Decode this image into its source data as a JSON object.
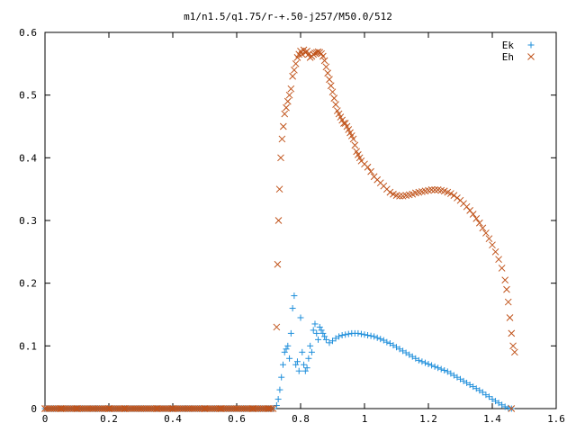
{
  "chart_data": {
    "type": "scatter",
    "title": "m1/n1.5/q1.75/r-+.50-j257/M50.0/512",
    "xlabel": "",
    "ylabel": "",
    "xlim": [
      0,
      1.6
    ],
    "ylim": [
      0,
      0.6
    ],
    "xticks": [
      "0",
      "0.2",
      "0.4",
      "0.6",
      "0.8",
      "1",
      "1.2",
      "1.4",
      "1.6"
    ],
    "yticks": [
      "0",
      "0.1",
      "0.2",
      "0.3",
      "0.4",
      "0.5",
      "0.6"
    ],
    "grid": false,
    "legend_position": "top-right",
    "series": [
      {
        "name": "Ek",
        "marker": "plus",
        "color": "#1f8fdb",
        "points": [
          [
            0.0,
            0
          ],
          [
            0.05,
            0
          ],
          [
            0.1,
            0
          ],
          [
            0.15,
            0
          ],
          [
            0.2,
            0
          ],
          [
            0.25,
            0
          ],
          [
            0.3,
            0
          ],
          [
            0.35,
            0
          ],
          [
            0.4,
            0
          ],
          [
            0.45,
            0
          ],
          [
            0.5,
            0
          ],
          [
            0.55,
            0
          ],
          [
            0.6,
            0
          ],
          [
            0.65,
            0
          ],
          [
            0.7,
            0
          ],
          [
            0.725,
            0.005
          ],
          [
            0.73,
            0.015
          ],
          [
            0.735,
            0.03
          ],
          [
            0.74,
            0.05
          ],
          [
            0.745,
            0.07
          ],
          [
            0.75,
            0.09
          ],
          [
            0.755,
            0.095
          ],
          [
            0.76,
            0.1
          ],
          [
            0.765,
            0.08
          ],
          [
            0.77,
            0.12
          ],
          [
            0.775,
            0.16
          ],
          [
            0.78,
            0.18
          ],
          [
            0.785,
            0.07
          ],
          [
            0.79,
            0.075
          ],
          [
            0.795,
            0.06
          ],
          [
            0.8,
            0.145
          ],
          [
            0.805,
            0.09
          ],
          [
            0.81,
            0.07
          ],
          [
            0.815,
            0.06
          ],
          [
            0.82,
            0.065
          ],
          [
            0.825,
            0.08
          ],
          [
            0.83,
            0.1
          ],
          [
            0.835,
            0.09
          ],
          [
            0.84,
            0.125
          ],
          [
            0.845,
            0.135
          ],
          [
            0.85,
            0.12
          ],
          [
            0.855,
            0.11
          ],
          [
            0.86,
            0.13
          ],
          [
            0.865,
            0.125
          ],
          [
            0.87,
            0.12
          ],
          [
            0.875,
            0.115
          ],
          [
            0.88,
            0.11
          ],
          [
            0.89,
            0.105
          ],
          [
            0.9,
            0.108
          ],
          [
            0.91,
            0.112
          ],
          [
            0.92,
            0.115
          ],
          [
            0.93,
            0.117
          ],
          [
            0.94,
            0.118
          ],
          [
            0.95,
            0.119
          ],
          [
            0.96,
            0.12
          ],
          [
            0.97,
            0.12
          ],
          [
            0.98,
            0.12
          ],
          [
            0.99,
            0.119
          ],
          [
            1.0,
            0.118
          ],
          [
            1.01,
            0.117
          ],
          [
            1.02,
            0.116
          ],
          [
            1.03,
            0.115
          ],
          [
            1.04,
            0.113
          ],
          [
            1.05,
            0.111
          ],
          [
            1.06,
            0.109
          ],
          [
            1.07,
            0.106
          ],
          [
            1.08,
            0.104
          ],
          [
            1.09,
            0.101
          ],
          [
            1.1,
            0.098
          ],
          [
            1.11,
            0.095
          ],
          [
            1.12,
            0.092
          ],
          [
            1.13,
            0.089
          ],
          [
            1.14,
            0.086
          ],
          [
            1.15,
            0.083
          ],
          [
            1.16,
            0.08
          ],
          [
            1.17,
            0.077
          ],
          [
            1.18,
            0.075
          ],
          [
            1.19,
            0.073
          ],
          [
            1.2,
            0.071
          ],
          [
            1.21,
            0.069
          ],
          [
            1.22,
            0.067
          ],
          [
            1.23,
            0.065
          ],
          [
            1.24,
            0.063
          ],
          [
            1.25,
            0.061
          ],
          [
            1.26,
            0.059
          ],
          [
            1.27,
            0.056
          ],
          [
            1.28,
            0.053
          ],
          [
            1.29,
            0.05
          ],
          [
            1.3,
            0.047
          ],
          [
            1.31,
            0.044
          ],
          [
            1.32,
            0.041
          ],
          [
            1.33,
            0.038
          ],
          [
            1.34,
            0.035
          ],
          [
            1.35,
            0.032
          ],
          [
            1.36,
            0.029
          ],
          [
            1.37,
            0.026
          ],
          [
            1.38,
            0.022
          ],
          [
            1.39,
            0.019
          ],
          [
            1.4,
            0.015
          ],
          [
            1.41,
            0.012
          ],
          [
            1.42,
            0.009
          ],
          [
            1.43,
            0.006
          ],
          [
            1.44,
            0.003
          ],
          [
            1.45,
            0.001
          ],
          [
            1.46,
            0
          ]
        ]
      },
      {
        "name": "Eh",
        "marker": "cross",
        "color": "#c0531a",
        "points": [
          [
            0.0,
            0
          ],
          [
            0.05,
            0
          ],
          [
            0.1,
            0
          ],
          [
            0.15,
            0
          ],
          [
            0.2,
            0
          ],
          [
            0.25,
            0
          ],
          [
            0.3,
            0
          ],
          [
            0.35,
            0
          ],
          [
            0.4,
            0
          ],
          [
            0.45,
            0
          ],
          [
            0.5,
            0
          ],
          [
            0.55,
            0
          ],
          [
            0.6,
            0
          ],
          [
            0.65,
            0
          ],
          [
            0.7,
            0
          ],
          [
            0.725,
            0.13
          ],
          [
            0.728,
            0.23
          ],
          [
            0.731,
            0.3
          ],
          [
            0.734,
            0.35
          ],
          [
            0.738,
            0.4
          ],
          [
            0.742,
            0.43
          ],
          [
            0.746,
            0.45
          ],
          [
            0.75,
            0.47
          ],
          [
            0.755,
            0.48
          ],
          [
            0.76,
            0.49
          ],
          [
            0.765,
            0.5
          ],
          [
            0.77,
            0.51
          ],
          [
            0.775,
            0.53
          ],
          [
            0.78,
            0.54
          ],
          [
            0.785,
            0.55
          ],
          [
            0.79,
            0.56
          ],
          [
            0.795,
            0.565
          ],
          [
            0.8,
            0.57
          ],
          [
            0.805,
            0.565
          ],
          [
            0.81,
            0.572
          ],
          [
            0.815,
            0.568
          ],
          [
            0.82,
            0.57
          ],
          [
            0.825,
            0.565
          ],
          [
            0.83,
            0.56
          ],
          [
            0.835,
            0.562
          ],
          [
            0.84,
            0.565
          ],
          [
            0.845,
            0.567
          ],
          [
            0.85,
            0.568
          ],
          [
            0.855,
            0.569
          ],
          [
            0.86,
            0.568
          ],
          [
            0.865,
            0.566
          ],
          [
            0.87,
            0.562
          ],
          [
            0.875,
            0.555
          ],
          [
            0.88,
            0.545
          ],
          [
            0.885,
            0.535
          ],
          [
            0.89,
            0.525
          ],
          [
            0.895,
            0.515
          ],
          [
            0.9,
            0.505
          ],
          [
            0.905,
            0.495
          ],
          [
            0.91,
            0.485
          ],
          [
            0.915,
            0.475
          ],
          [
            0.92,
            0.47
          ],
          [
            0.925,
            0.465
          ],
          [
            0.93,
            0.46
          ],
          [
            0.935,
            0.455
          ],
          [
            0.94,
            0.455
          ],
          [
            0.945,
            0.45
          ],
          [
            0.95,
            0.445
          ],
          [
            0.955,
            0.44
          ],
          [
            0.96,
            0.435
          ],
          [
            0.965,
            0.43
          ],
          [
            0.97,
            0.42
          ],
          [
            0.975,
            0.41
          ],
          [
            0.98,
            0.405
          ],
          [
            0.985,
            0.4
          ],
          [
            0.99,
            0.395
          ],
          [
            1.0,
            0.39
          ],
          [
            1.01,
            0.385
          ],
          [
            1.02,
            0.378
          ],
          [
            1.03,
            0.37
          ],
          [
            1.04,
            0.365
          ],
          [
            1.05,
            0.36
          ],
          [
            1.06,
            0.355
          ],
          [
            1.07,
            0.35
          ],
          [
            1.08,
            0.345
          ],
          [
            1.09,
            0.342
          ],
          [
            1.1,
            0.34
          ],
          [
            1.11,
            0.339
          ],
          [
            1.12,
            0.339
          ],
          [
            1.13,
            0.34
          ],
          [
            1.14,
            0.341
          ],
          [
            1.15,
            0.342
          ],
          [
            1.16,
            0.344
          ],
          [
            1.17,
            0.345
          ],
          [
            1.18,
            0.346
          ],
          [
            1.19,
            0.347
          ],
          [
            1.2,
            0.348
          ],
          [
            1.21,
            0.349
          ],
          [
            1.22,
            0.349
          ],
          [
            1.23,
            0.349
          ],
          [
            1.24,
            0.348
          ],
          [
            1.25,
            0.347
          ],
          [
            1.26,
            0.345
          ],
          [
            1.27,
            0.343
          ],
          [
            1.28,
            0.34
          ],
          [
            1.29,
            0.336
          ],
          [
            1.3,
            0.332
          ],
          [
            1.31,
            0.327
          ],
          [
            1.32,
            0.322
          ],
          [
            1.33,
            0.316
          ],
          [
            1.34,
            0.31
          ],
          [
            1.35,
            0.303
          ],
          [
            1.36,
            0.296
          ],
          [
            1.37,
            0.288
          ],
          [
            1.38,
            0.28
          ],
          [
            1.39,
            0.271
          ],
          [
            1.4,
            0.261
          ],
          [
            1.41,
            0.25
          ],
          [
            1.42,
            0.238
          ],
          [
            1.43,
            0.224
          ],
          [
            1.44,
            0.205
          ],
          [
            1.445,
            0.19
          ],
          [
            1.45,
            0.17
          ],
          [
            1.455,
            0.145
          ],
          [
            1.46,
            0.12
          ],
          [
            1.465,
            0.1
          ],
          [
            1.47,
            0.09
          ],
          [
            1.46,
            0
          ]
        ]
      }
    ]
  }
}
